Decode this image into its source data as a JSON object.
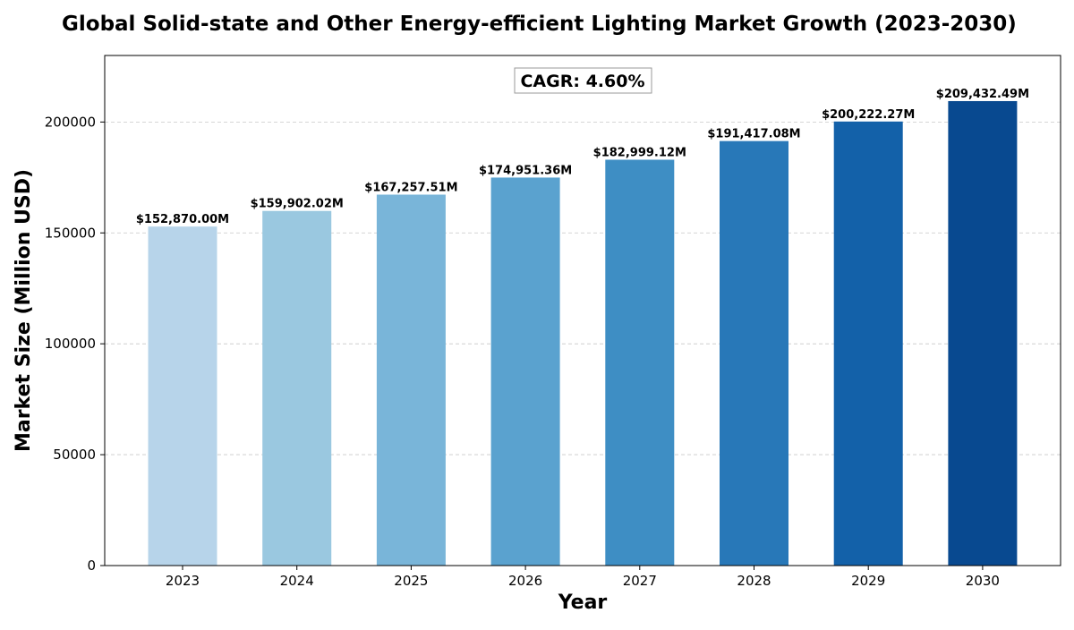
{
  "chart_data": {
    "type": "bar",
    "title": "Global Solid-state and Other Energy-efficient Lighting Market Growth (2023-2030)",
    "xlabel": "Year",
    "ylabel": "Market Size (Million USD)",
    "categories": [
      "2023",
      "2024",
      "2025",
      "2026",
      "2027",
      "2028",
      "2029",
      "2030"
    ],
    "values": [
      152870.0,
      159902.02,
      167257.51,
      174951.36,
      182999.12,
      191417.08,
      200222.27,
      209432.49
    ],
    "data_labels": [
      "$152,870.00M",
      "$159,902.02M",
      "$167,257.51M",
      "$174,951.36M",
      "$182,999.12M",
      "$191,417.08M",
      "$200,222.27M",
      "$209,432.49M"
    ],
    "bar_colors": [
      "#b7d4ea",
      "#9ac8e0",
      "#79b5d9",
      "#5aa2cf",
      "#3e8ec4",
      "#2878b8",
      "#1361a9",
      "#084990"
    ],
    "ylim": [
      0,
      230000
    ],
    "yticks": [
      0,
      50000,
      100000,
      150000,
      200000
    ],
    "ytick_labels": [
      "0",
      "50000",
      "100000",
      "150000",
      "200000"
    ],
    "grid": "y-dashed",
    "annotation": "CAGR: 4.60%"
  }
}
